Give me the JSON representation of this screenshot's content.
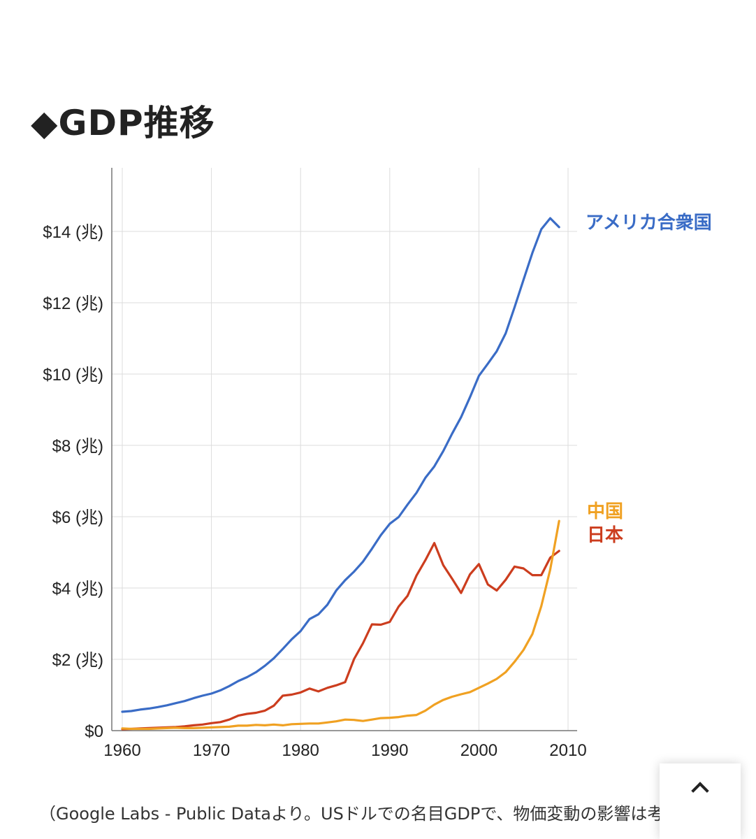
{
  "heading": "◆GDP推移",
  "caption": "（Google Labs - Public Dataより。USドルでの名目GDPで、物価変動の影響は考",
  "icons": {
    "back_to_top": "chevron-up-icon"
  },
  "chart_data": {
    "type": "line",
    "title": "",
    "xlabel": "",
    "ylabel": "",
    "xlim": [
      1960,
      2010
    ],
    "ylim": [
      0,
      15.8
    ],
    "grid": true,
    "x_ticks": [
      1960,
      1970,
      1980,
      1990,
      2000,
      2010
    ],
    "y_ticks": [
      {
        "value": 0,
        "label": "$0"
      },
      {
        "value": 2,
        "label": "$2 (兆)"
      },
      {
        "value": 4,
        "label": "$4 (兆)"
      },
      {
        "value": 6,
        "label": "$6 (兆)"
      },
      {
        "value": 8,
        "label": "$8 (兆)"
      },
      {
        "value": 10,
        "label": "$10 (兆)"
      },
      {
        "value": 12,
        "label": "$12 (兆)"
      },
      {
        "value": 14,
        "label": "$14 (兆)"
      }
    ],
    "legend": "inline-right",
    "series": [
      {
        "name": "アメリカ合衆国",
        "color": "#3a6cc6",
        "x": [
          1960,
          1961,
          1962,
          1963,
          1964,
          1965,
          1966,
          1967,
          1968,
          1969,
          1970,
          1971,
          1972,
          1973,
          1974,
          1975,
          1976,
          1977,
          1978,
          1979,
          1980,
          1981,
          1982,
          1983,
          1984,
          1985,
          1986,
          1987,
          1988,
          1989,
          1990,
          1991,
          1992,
          1993,
          1994,
          1995,
          1996,
          1997,
          1998,
          1999,
          2000,
          2001,
          2002,
          2003,
          2004,
          2005,
          2006,
          2007,
          2008,
          2009
        ],
        "values": [
          0.53,
          0.55,
          0.59,
          0.62,
          0.66,
          0.71,
          0.77,
          0.83,
          0.91,
          0.98,
          1.04,
          1.13,
          1.25,
          1.39,
          1.5,
          1.64,
          1.82,
          2.03,
          2.29,
          2.56,
          2.79,
          3.13,
          3.26,
          3.53,
          3.93,
          4.22,
          4.46,
          4.74,
          5.1,
          5.48,
          5.8,
          5.99,
          6.34,
          6.67,
          7.09,
          7.41,
          7.84,
          8.33,
          8.79,
          9.35,
          9.95,
          10.29,
          10.64,
          11.14,
          11.87,
          12.64,
          13.4,
          14.06,
          14.37,
          14.12
        ]
      },
      {
        "name": "日本",
        "color": "#cc3d1e",
        "x": [
          1960,
          1961,
          1962,
          1963,
          1964,
          1965,
          1966,
          1967,
          1968,
          1969,
          1970,
          1971,
          1972,
          1973,
          1974,
          1975,
          1976,
          1977,
          1978,
          1979,
          1980,
          1981,
          1982,
          1983,
          1984,
          1985,
          1986,
          1987,
          1988,
          1989,
          1990,
          1991,
          1992,
          1993,
          1994,
          1995,
          1996,
          1997,
          1998,
          1999,
          2000,
          2001,
          2002,
          2003,
          2004,
          2005,
          2006,
          2007,
          2008,
          2009
        ],
        "values": [
          0.04,
          0.05,
          0.06,
          0.07,
          0.08,
          0.09,
          0.1,
          0.12,
          0.15,
          0.17,
          0.21,
          0.24,
          0.31,
          0.42,
          0.47,
          0.5,
          0.56,
          0.7,
          0.98,
          1.01,
          1.07,
          1.18,
          1.1,
          1.2,
          1.27,
          1.36,
          2.01,
          2.45,
          2.98,
          2.97,
          3.05,
          3.48,
          3.78,
          4.35,
          4.78,
          5.26,
          4.64,
          4.26,
          3.86,
          4.38,
          4.67,
          4.1,
          3.93,
          4.23,
          4.6,
          4.55,
          4.36,
          4.36,
          4.85,
          5.04
        ]
      },
      {
        "name": "中国",
        "color": "#f0a122",
        "x": [
          1960,
          1961,
          1962,
          1963,
          1964,
          1965,
          1966,
          1967,
          1968,
          1969,
          1970,
          1971,
          1972,
          1973,
          1974,
          1975,
          1976,
          1977,
          1978,
          1979,
          1980,
          1981,
          1982,
          1983,
          1984,
          1985,
          1986,
          1987,
          1988,
          1989,
          1990,
          1991,
          1992,
          1993,
          1994,
          1995,
          1996,
          1997,
          1998,
          1999,
          2000,
          2001,
          2002,
          2003,
          2004,
          2005,
          2006,
          2007,
          2008,
          2009
        ],
        "values": [
          0.06,
          0.05,
          0.05,
          0.05,
          0.06,
          0.07,
          0.08,
          0.07,
          0.07,
          0.08,
          0.09,
          0.1,
          0.11,
          0.14,
          0.14,
          0.16,
          0.15,
          0.17,
          0.15,
          0.18,
          0.19,
          0.2,
          0.2,
          0.23,
          0.26,
          0.31,
          0.3,
          0.27,
          0.31,
          0.35,
          0.36,
          0.38,
          0.42,
          0.44,
          0.56,
          0.73,
          0.86,
          0.95,
          1.02,
          1.08,
          1.2,
          1.32,
          1.45,
          1.64,
          1.93,
          2.26,
          2.71,
          3.49,
          4.52,
          5.88
        ]
      }
    ]
  }
}
